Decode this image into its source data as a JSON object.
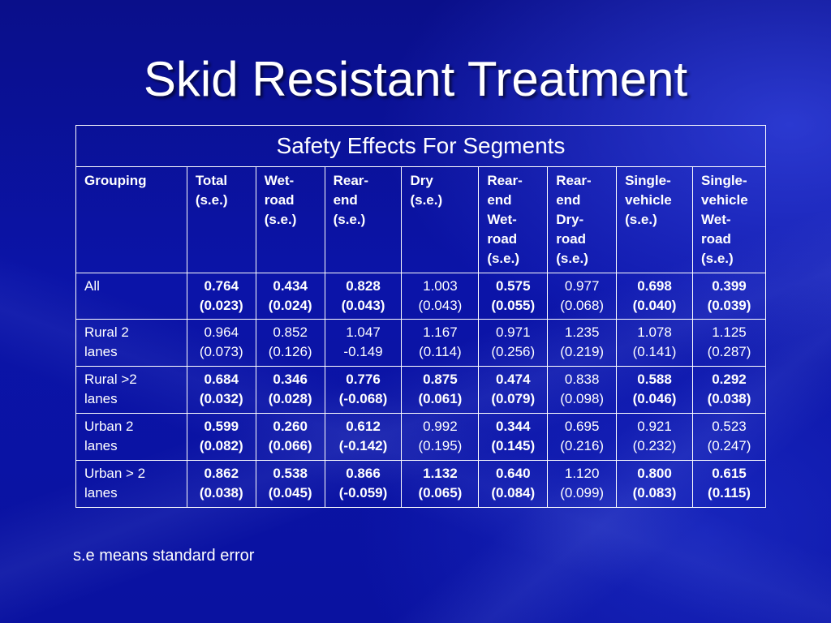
{
  "title": "Skid Resistant Treatment",
  "table": {
    "caption": "Safety Effects For Segments",
    "headers": [
      [
        "Grouping"
      ],
      [
        "Total",
        "(s.e.)"
      ],
      [
        "Wet-",
        "road",
        "(s.e.)"
      ],
      [
        "Rear-",
        "end",
        "(s.e.)"
      ],
      [
        "Dry",
        "(s.e.)"
      ],
      [
        "Rear-",
        "end",
        "Wet-",
        "road",
        "(s.e.)"
      ],
      [
        "Rear-",
        "end",
        "Dry-",
        "road",
        "(s.e.)"
      ],
      [
        "Single-",
        "vehicle",
        "(s.e.)"
      ],
      [
        "Single-",
        "vehicle",
        "Wet-",
        "road",
        "(s.e.)"
      ]
    ],
    "rows": [
      {
        "group": [
          "All"
        ],
        "cells": [
          {
            "v": "0.764",
            "se": "(0.023)",
            "bold": true
          },
          {
            "v": "0.434",
            "se": "(0.024)",
            "bold": true
          },
          {
            "v": "0.828",
            "se": "(0.043)",
            "bold": true
          },
          {
            "v": "1.003",
            "se": "(0.043)",
            "bold": false
          },
          {
            "v": "0.575",
            "se": "(0.055)",
            "bold": true
          },
          {
            "v": "0.977",
            "se": "(0.068)",
            "bold": false
          },
          {
            "v": "0.698",
            "se": "(0.040)",
            "bold": true
          },
          {
            "v": "0.399",
            "se": "(0.039)",
            "bold": true
          }
        ]
      },
      {
        "group": [
          "Rural 2",
          "lanes"
        ],
        "cells": [
          {
            "v": "0.964",
            "se": "(0.073)",
            "bold": false
          },
          {
            "v": "0.852",
            "se": "(0.126)",
            "bold": false
          },
          {
            "v": "1.047",
            "se": "-0.149",
            "bold": false
          },
          {
            "v": "1.167",
            "se": "(0.114)",
            "bold": false
          },
          {
            "v": "0.971",
            "se": "(0.256)",
            "bold": false
          },
          {
            "v": "1.235",
            "se": "(0.219)",
            "bold": false
          },
          {
            "v": "1.078",
            "se": "(0.141)",
            "bold": false
          },
          {
            "v": "1.125",
            "se": "(0.287)",
            "bold": false
          }
        ]
      },
      {
        "group": [
          "Rural >2",
          "lanes"
        ],
        "cells": [
          {
            "v": "0.684",
            "se": "(0.032)",
            "bold": true
          },
          {
            "v": "0.346",
            "se": "(0.028)",
            "bold": true
          },
          {
            "v": "0.776",
            "se": "(-0.068)",
            "bold": true
          },
          {
            "v": "0.875",
            "se": "(0.061)",
            "bold": true
          },
          {
            "v": "0.474",
            "se": "(0.079)",
            "bold": true
          },
          {
            "v": "0.838",
            "se": "(0.098)",
            "bold": false
          },
          {
            "v": "0.588",
            "se": "(0.046)",
            "bold": true
          },
          {
            "v": "0.292",
            "se": "(0.038)",
            "bold": true
          }
        ]
      },
      {
        "group": [
          "Urban 2",
          "lanes"
        ],
        "cells": [
          {
            "v": "0.599",
            "se": "(0.082)",
            "bold": true
          },
          {
            "v": "0.260",
            "se": "(0.066)",
            "bold": true
          },
          {
            "v": "0.612",
            "se": "(-0.142)",
            "bold": true
          },
          {
            "v": "0.992",
            "se": "(0.195)",
            "bold": false
          },
          {
            "v": "0.344",
            "se": "(0.145)",
            "bold": true
          },
          {
            "v": "0.695",
            "se": "(0.216)",
            "bold": false
          },
          {
            "v": "0.921",
            "se": "(0.232)",
            "bold": false
          },
          {
            "v": "0.523",
            "se": "(0.247)",
            "bold": false
          }
        ]
      },
      {
        "group": [
          "Urban > 2",
          "lanes"
        ],
        "cells": [
          {
            "v": "0.862",
            "se": "(0.038)",
            "bold": true
          },
          {
            "v": "0.538",
            "se": "(0.045)",
            "bold": true
          },
          {
            "v": "0.866",
            "se": "(-0.059)",
            "bold": true
          },
          {
            "v": "1.132",
            "se": "(0.065)",
            "bold": true
          },
          {
            "v": "0.640",
            "se": "(0.084)",
            "bold": true
          },
          {
            "v": "1.120",
            "se": "(0.099)",
            "bold": false
          },
          {
            "v": "0.800",
            "se": "(0.083)",
            "bold": true
          },
          {
            "v": "0.615",
            "se": "(0.115)",
            "bold": true
          }
        ]
      }
    ]
  },
  "footnote": "s.e means standard error"
}
